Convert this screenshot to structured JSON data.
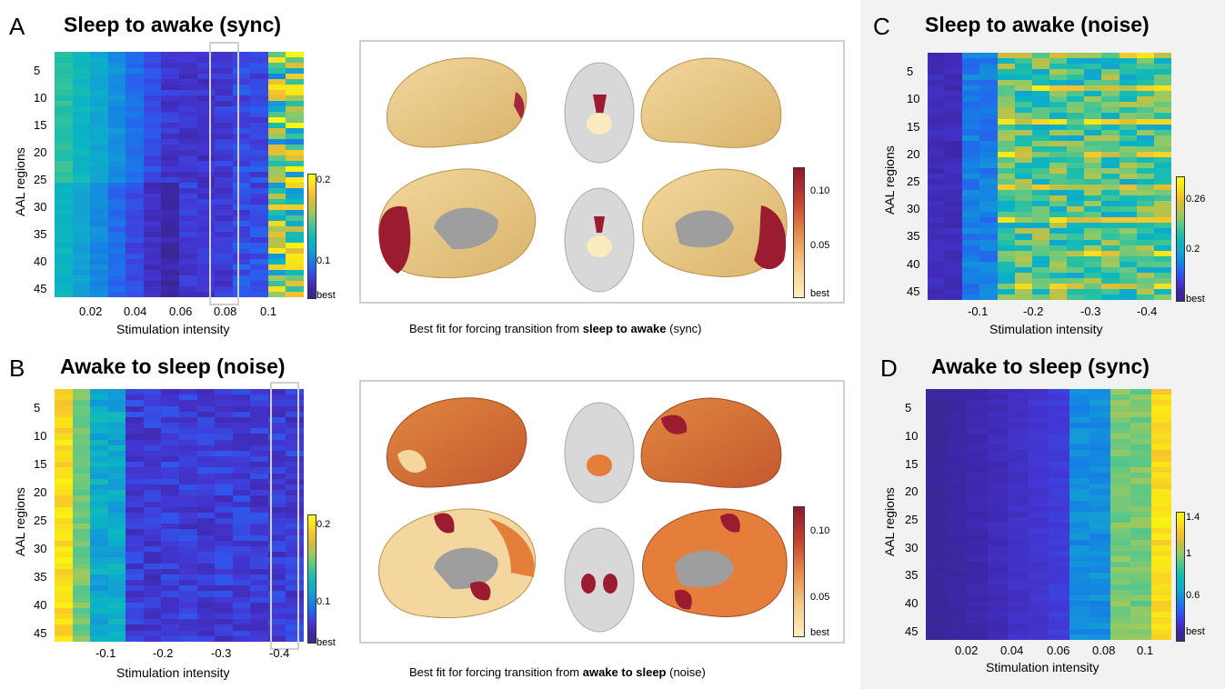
{
  "panels": {
    "A": {
      "letter": "A",
      "title": "Sleep to awake (sync)",
      "xticks": [
        "0.02",
        "0.04",
        "0.06",
        "0.08",
        "0.1"
      ],
      "cbticks": [
        "0.2",
        "0.1",
        "best"
      ]
    },
    "B": {
      "letter": "B",
      "title": "Awake to sleep (noise)",
      "xticks": [
        "-0.1",
        "-0.2",
        "-0.3",
        "-0.4"
      ],
      "cbticks": [
        "0.2",
        "0.1",
        "best"
      ]
    },
    "C": {
      "letter": "C",
      "title": "Sleep to awake (noise)",
      "xticks": [
        "-0.1",
        "-0.2",
        "-0.3",
        "-0.4"
      ],
      "cbticks": [
        "0.26",
        "0.2",
        "best"
      ]
    },
    "D": {
      "letter": "D",
      "title": "Awake to sleep (sync)",
      "xticks": [
        "0.02",
        "0.04",
        "0.06",
        "0.08",
        "0.1"
      ],
      "cbticks": [
        "1.4",
        "1",
        "0.6",
        "best"
      ]
    }
  },
  "yticks": [
    "5",
    "10",
    "15",
    "20",
    "25",
    "30",
    "35",
    "40",
    "45"
  ],
  "ylabel": "AAL regions",
  "xlabel": "Stimulation intensity",
  "brain": {
    "top_caption": {
      "pre": "Best fit for forcing transition from ",
      "bold": "sleep to awake",
      "post": " (sync)"
    },
    "bottom_caption": {
      "pre": "Best fit for forcing transition from ",
      "bold": "awake to sleep",
      "post": " (noise)"
    },
    "cbticks": [
      "0.10",
      "0.05",
      "best"
    ]
  },
  "colors": {
    "frame": "#cfcfcf",
    "right_bg": "#f2f2f2"
  }
}
